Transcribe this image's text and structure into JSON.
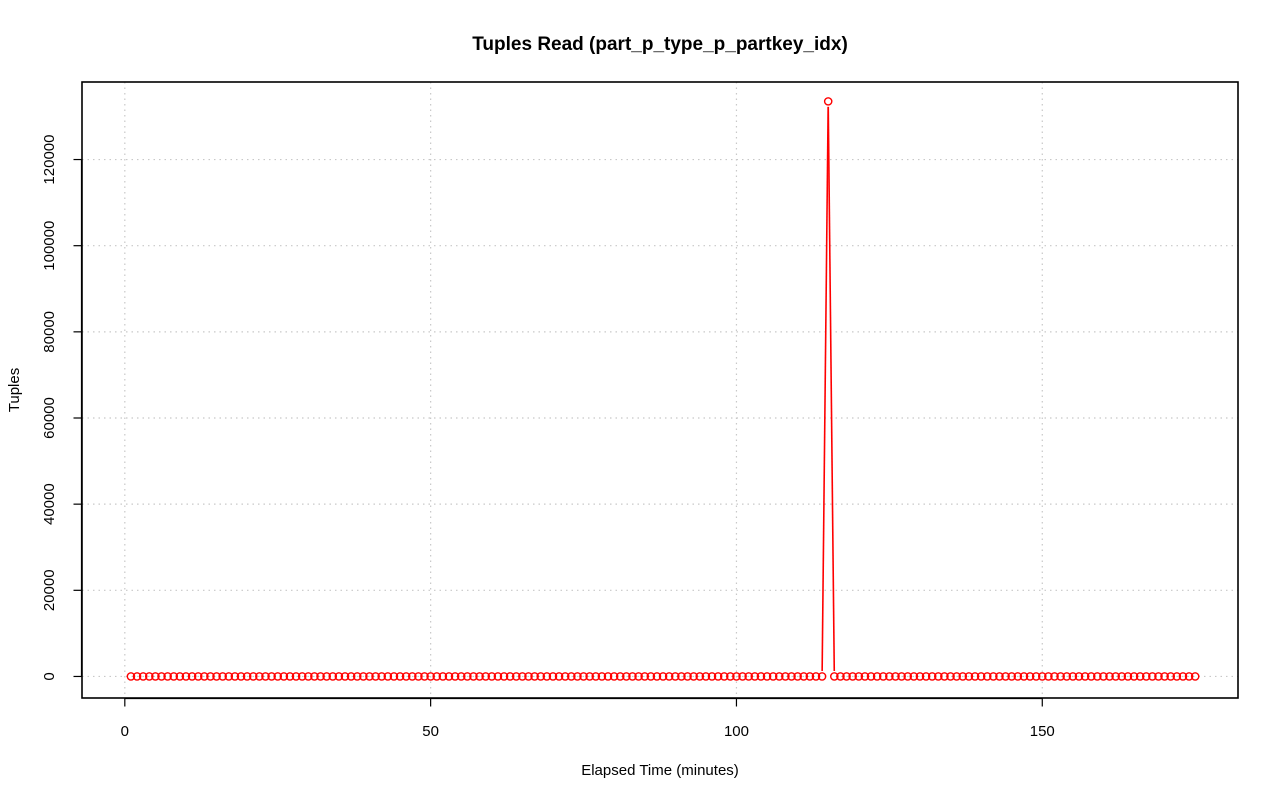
{
  "chart_data": {
    "type": "line",
    "title": "Tuples Read (part_p_type_p_partkey_idx)",
    "xlabel": "Elapsed Time (minutes)",
    "ylabel": "Tuples",
    "xlim": [
      -7,
      182
    ],
    "ylim": [
      -5000,
      138000
    ],
    "x_ticks": [
      0,
      50,
      100,
      150
    ],
    "x_tick_labels": [
      "0",
      "50",
      "100",
      "150"
    ],
    "y_ticks": [
      0,
      20000,
      40000,
      60000,
      80000,
      100000,
      120000
    ],
    "y_tick_labels": [
      "0",
      "20000",
      "40000",
      "60000",
      "80000",
      "100000",
      "120000"
    ],
    "grid": true,
    "line_style": "both",
    "series": [
      {
        "color": "#ff0000",
        "marker": "open-circle",
        "x_start": 1,
        "x_end": 175,
        "x_step": 1,
        "baseline_value": 0,
        "spikes": [
          {
            "x": 115,
            "y": 133500
          }
        ]
      }
    ]
  }
}
